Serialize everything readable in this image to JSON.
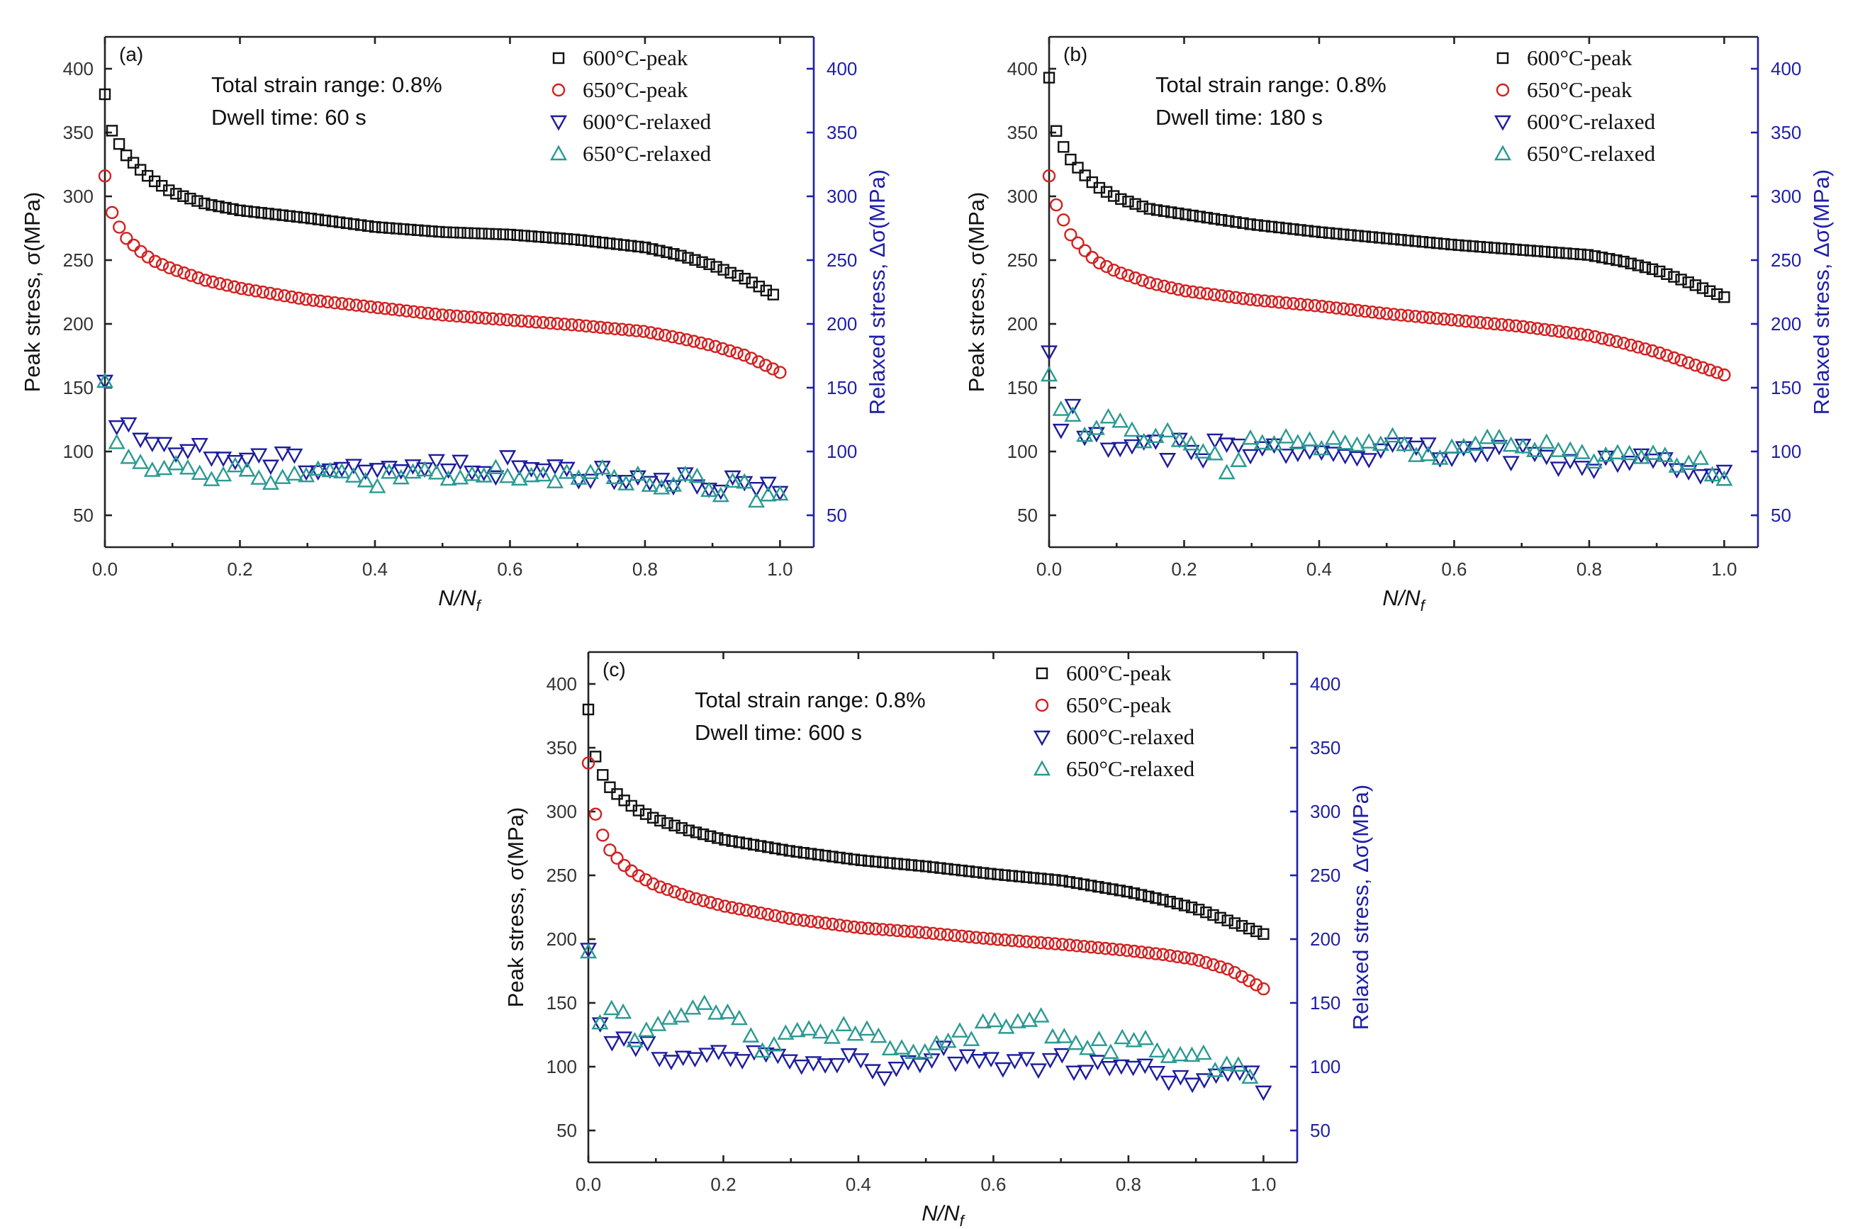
{
  "figure_title": "Peak and relaxed stress evolution under total strain range 0.8% for three dwell times",
  "colors": {
    "600C-peak": "#111111",
    "650C-peak": "#d42020",
    "600C-relaxed": "#1c1c9e",
    "650C-relaxed": "#2a9a92",
    "right_axis": "#1f1fa8"
  },
  "chart_data": [
    {
      "type": "scatter",
      "panel_label": "(a)",
      "annotations": [
        "Total strain range: 0.8%",
        "Dwell time: 60 s"
      ],
      "xlabel_main": "N/N",
      "xlabel_sub": "f",
      "ylabel_left": "Peak stress, σ(MPa)",
      "ylabel_right": "Relaxed stress, Δσ(MPa)",
      "xlim": [
        0,
        1.05
      ],
      "ylim": [
        25,
        425
      ],
      "x_ticks": [
        "0.0",
        "0.2",
        "0.4",
        "0.6",
        "0.8",
        "1.0"
      ],
      "y_ticks": [
        "50",
        "100",
        "150",
        "200",
        "250",
        "300",
        "350",
        "400"
      ],
      "legend": [
        "600°C-peak",
        "650°C-peak",
        "600°C-relaxed",
        "650°C-relaxed"
      ],
      "series": [
        {
          "name": "600°C-peak",
          "marker": "square",
          "x": [
            0,
            0.01,
            0.02,
            0.03,
            0.05,
            0.07,
            0.1,
            0.15,
            0.2,
            0.3,
            0.4,
            0.5,
            0.6,
            0.7,
            0.8,
            0.85,
            0.9,
            0.95,
            0.99
          ],
          "y": [
            380,
            352,
            342,
            333,
            322,
            313,
            303,
            294,
            289,
            283,
            276,
            272,
            270,
            266,
            260,
            254,
            246,
            235,
            223
          ]
        },
        {
          "name": "650°C-peak",
          "marker": "circle",
          "x": [
            0,
            0.01,
            0.02,
            0.03,
            0.05,
            0.07,
            0.1,
            0.15,
            0.2,
            0.3,
            0.4,
            0.5,
            0.6,
            0.7,
            0.8,
            0.85,
            0.9,
            0.95,
            1.0
          ],
          "y": [
            316,
            288,
            277,
            268,
            258,
            250,
            243,
            234,
            228,
            219,
            213,
            207,
            203,
            199,
            194,
            189,
            183,
            175,
            162
          ]
        },
        {
          "name": "600°C-relaxed",
          "marker": "triangle-down",
          "x": [
            0,
            0.01,
            0.03,
            0.05,
            0.08,
            0.1,
            0.15,
            0.2,
            0.3,
            0.4,
            0.5,
            0.6,
            0.7,
            0.8,
            0.9,
            0.95,
            1.0
          ],
          "y": [
            155,
            122,
            115,
            112,
            105,
            105,
            98,
            95,
            90,
            88,
            87,
            88,
            85,
            80,
            78,
            72,
            67
          ]
        },
        {
          "name": "650°C-relaxed",
          "marker": "triangle-up",
          "x": [
            0,
            0.01,
            0.03,
            0.05,
            0.08,
            0.1,
            0.15,
            0.2,
            0.3,
            0.4,
            0.5,
            0.6,
            0.7,
            0.8,
            0.9,
            0.95,
            1.0
          ],
          "y": [
            155,
            110,
            102,
            95,
            90,
            92,
            85,
            85,
            80,
            80,
            78,
            82,
            80,
            78,
            72,
            68,
            62
          ]
        }
      ]
    },
    {
      "type": "scatter",
      "panel_label": "(b)",
      "annotations": [
        "Total strain range: 0.8%",
        "Dwell time: 180 s"
      ],
      "xlabel_main": "N/N",
      "xlabel_sub": "f",
      "ylabel_left": "Peak stress, σ(MPa)",
      "ylabel_right": "Relaxed stress, Δσ(MPa)",
      "xlim": [
        0,
        1.05
      ],
      "ylim": [
        25,
        425
      ],
      "x_ticks": [
        "0.0",
        "0.2",
        "0.4",
        "0.6",
        "0.8",
        "1.0"
      ],
      "y_ticks": [
        "50",
        "100",
        "150",
        "200",
        "250",
        "300",
        "350",
        "400"
      ],
      "legend": [
        "600°C-peak",
        "650°C-peak",
        "600°C-relaxed",
        "650°C-relaxed"
      ],
      "series": [
        {
          "name": "600°C-peak",
          "marker": "square",
          "x": [
            0,
            0.01,
            0.02,
            0.03,
            0.05,
            0.07,
            0.1,
            0.15,
            0.2,
            0.3,
            0.4,
            0.5,
            0.6,
            0.7,
            0.8,
            0.85,
            0.9,
            0.95,
            1.0
          ],
          "y": [
            393,
            352,
            340,
            330,
            318,
            308,
            299,
            290,
            286,
            278,
            272,
            267,
            262,
            258,
            254,
            249,
            242,
            232,
            221
          ]
        },
        {
          "name": "650°C-peak",
          "marker": "circle",
          "x": [
            0,
            0.01,
            0.02,
            0.03,
            0.05,
            0.07,
            0.1,
            0.15,
            0.2,
            0.3,
            0.4,
            0.5,
            0.6,
            0.7,
            0.8,
            0.85,
            0.9,
            0.95,
            1.0
          ],
          "y": [
            316,
            294,
            283,
            271,
            259,
            249,
            241,
            232,
            226,
            219,
            214,
            208,
            203,
            198,
            191,
            185,
            178,
            169,
            160
          ]
        },
        {
          "name": "600°C-relaxed",
          "marker": "triangle-down",
          "x": [
            0,
            0.02,
            0.03,
            0.05,
            0.08,
            0.1,
            0.15,
            0.2,
            0.3,
            0.4,
            0.5,
            0.6,
            0.7,
            0.8,
            0.9,
            0.95,
            1.0
          ],
          "y": [
            178,
            108,
            142,
            110,
            105,
            108,
            100,
            102,
            100,
            100,
            100,
            98,
            97,
            93,
            92,
            88,
            80
          ]
        },
        {
          "name": "650°C-relaxed",
          "marker": "triangle-up",
          "x": [
            0,
            0.01,
            0.02,
            0.05,
            0.08,
            0.1,
            0.15,
            0.2,
            0.27,
            0.3,
            0.4,
            0.5,
            0.6,
            0.67,
            0.7,
            0.8,
            0.9,
            0.95,
            1.0
          ],
          "y": [
            160,
            133,
            133,
            112,
            118,
            125,
            108,
            110,
            85,
            108,
            108,
            105,
            100,
            112,
            105,
            100,
            92,
            90,
            86
          ]
        }
      ]
    },
    {
      "type": "scatter",
      "panel_label": "(c)",
      "annotations": [
        "Total strain range: 0.8%",
        "Dwell time: 600 s"
      ],
      "xlabel_main": "N/N",
      "xlabel_sub": "f",
      "ylabel_left": "Peak stress, σ(MPa)",
      "ylabel_right": "Relaxed stress, Δσ(MPa)",
      "xlim": [
        0,
        1.05
      ],
      "ylim": [
        25,
        425
      ],
      "x_ticks": [
        "0.0",
        "0.2",
        "0.4",
        "0.6",
        "0.8",
        "1.0"
      ],
      "y_ticks": [
        "50",
        "100",
        "150",
        "200",
        "250",
        "300",
        "350",
        "400"
      ],
      "legend": [
        "600°C-peak",
        "650°C-peak",
        "600°C-relaxed",
        "650°C-relaxed"
      ],
      "series": [
        {
          "name": "600°C-peak",
          "marker": "square",
          "x": [
            0,
            0.01,
            0.02,
            0.03,
            0.05,
            0.07,
            0.1,
            0.15,
            0.2,
            0.3,
            0.4,
            0.5,
            0.6,
            0.7,
            0.8,
            0.85,
            0.9,
            0.95,
            1.0
          ],
          "y": [
            380,
            344,
            330,
            320,
            310,
            302,
            294,
            285,
            278,
            269,
            262,
            257,
            251,
            246,
            237,
            231,
            224,
            214,
            204
          ]
        },
        {
          "name": "650°C-peak",
          "marker": "circle",
          "x": [
            0,
            0.01,
            0.02,
            0.03,
            0.05,
            0.07,
            0.1,
            0.15,
            0.2,
            0.3,
            0.4,
            0.5,
            0.6,
            0.7,
            0.8,
            0.85,
            0.9,
            0.95,
            1.0
          ],
          "y": [
            338,
            299,
            283,
            271,
            259,
            251,
            242,
            233,
            226,
            216,
            209,
            205,
            200,
            196,
            191,
            188,
            184,
            176,
            161
          ]
        },
        {
          "name": "600°C-relaxed",
          "marker": "triangle-down",
          "x": [
            0,
            0.01,
            0.03,
            0.05,
            0.08,
            0.1,
            0.13,
            0.2,
            0.3,
            0.4,
            0.45,
            0.5,
            0.6,
            0.7,
            0.8,
            0.9,
            1.0
          ],
          "y": [
            192,
            140,
            123,
            118,
            113,
            112,
            100,
            110,
            105,
            105,
            92,
            108,
            105,
            102,
            95,
            92,
            88
          ]
        },
        {
          "name": "650°C-relaxed",
          "marker": "triangle-up",
          "x": [
            0,
            0.01,
            0.04,
            0.07,
            0.1,
            0.15,
            0.2,
            0.25,
            0.3,
            0.4,
            0.5,
            0.6,
            0.63,
            0.67,
            0.7,
            0.8,
            0.9,
            0.98
          ],
          "y": [
            190,
            130,
            148,
            125,
            130,
            148,
            148,
            118,
            120,
            130,
            112,
            130,
            130,
            135,
            118,
            118,
            108,
            96
          ]
        }
      ]
    }
  ]
}
